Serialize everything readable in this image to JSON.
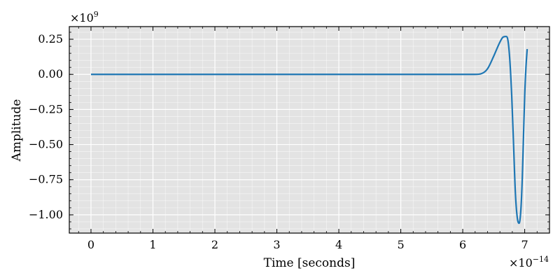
{
  "chart_data": {
    "type": "line",
    "title": "",
    "xlabel": "Time [seconds]",
    "ylabel": "Amplitude",
    "x_multiplier": {
      "base": "×10",
      "exponent": "−14"
    },
    "y_multiplier": {
      "base": "×10",
      "exponent": "9"
    },
    "xlim": [
      -0.35,
      7.4
    ],
    "ylim": [
      -1.13,
      0.34
    ],
    "xticks": [
      0,
      1,
      2,
      3,
      4,
      5,
      6,
      7
    ],
    "xtick_labels": [
      "0",
      "1",
      "2",
      "3",
      "4",
      "5",
      "6",
      "7"
    ],
    "yticks": [
      0.25,
      0.0,
      -0.25,
      -0.5,
      -0.75,
      -1.0
    ],
    "ytick_labels": [
      "0.25",
      "0.00",
      "−0.25",
      "−0.50",
      "−0.75",
      "−1.00"
    ],
    "grid": true,
    "background": "#e3e3e3",
    "series": [
      {
        "color": "#1f77b4",
        "x": [
          0,
          1,
          2,
          3,
          4,
          5,
          6,
          6.2,
          6.3,
          6.4,
          6.5,
          6.6,
          6.65,
          6.7,
          6.73,
          6.76,
          6.79,
          6.82,
          6.85,
          6.88,
          6.91,
          6.94,
          6.96,
          6.98,
          7.0,
          7.02,
          7.04
        ],
        "y": [
          0,
          0,
          0,
          0,
          0,
          0,
          0,
          0.0,
          0.005,
          0.04,
          0.13,
          0.23,
          0.265,
          0.27,
          0.24,
          0.1,
          -0.15,
          -0.5,
          -0.85,
          -1.02,
          -1.06,
          -0.95,
          -0.75,
          -0.45,
          -0.15,
          0.05,
          0.18
        ]
      }
    ]
  }
}
